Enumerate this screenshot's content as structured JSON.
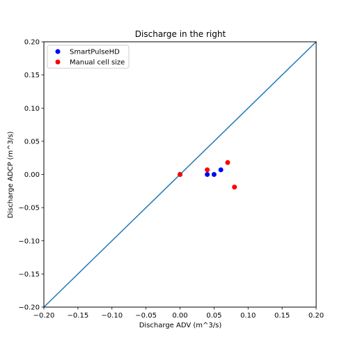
{
  "chart_data": {
    "type": "scatter",
    "title": "Discharge in the right",
    "xlabel": "Discharge ADV (m^3/s)",
    "ylabel": "Discharge ADCP (m^3/s)",
    "xlim": [
      -0.2,
      0.2
    ],
    "ylim": [
      -0.2,
      0.2
    ],
    "xticks": [
      -0.2,
      -0.15,
      -0.1,
      -0.05,
      0.0,
      0.05,
      0.1,
      0.15,
      0.2
    ],
    "yticks": [
      -0.2,
      -0.15,
      -0.1,
      -0.05,
      0.0,
      0.05,
      0.1,
      0.15,
      0.2
    ],
    "xtick_labels": [
      "−0.20",
      "−0.15",
      "−0.10",
      "−0.05",
      "0.00",
      "0.05",
      "0.10",
      "0.15",
      "0.20"
    ],
    "ytick_labels": [
      "−0.20",
      "−0.15",
      "−0.10",
      "−0.05",
      "0.00",
      "0.05",
      "0.10",
      "0.15",
      "0.20"
    ],
    "grid": false,
    "legend_position": "top-left",
    "reference_line": {
      "x": [
        -0.2,
        0.2
      ],
      "y": [
        -0.2,
        0.2
      ],
      "color": "#1f77b4"
    },
    "series": [
      {
        "name": "SmartPulseHD",
        "color": "#0000ff",
        "points": [
          {
            "x": 0.0,
            "y": 0.0
          },
          {
            "x": 0.04,
            "y": 0.0
          },
          {
            "x": 0.05,
            "y": 0.0
          },
          {
            "x": 0.06,
            "y": 0.007
          }
        ]
      },
      {
        "name": "Manual cell size",
        "color": "#ff0000",
        "points": [
          {
            "x": 0.0,
            "y": 0.0
          },
          {
            "x": 0.04,
            "y": 0.007
          },
          {
            "x": 0.07,
            "y": 0.018
          },
          {
            "x": 0.08,
            "y": -0.019
          }
        ]
      }
    ]
  }
}
